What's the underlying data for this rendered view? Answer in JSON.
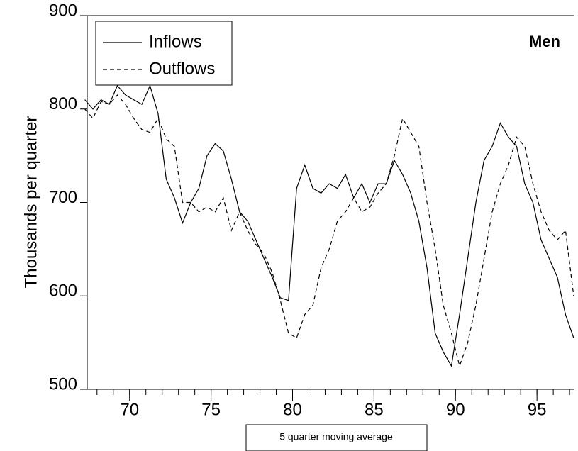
{
  "chart_data": {
    "type": "line",
    "panel_label": "Men",
    "y_label": "Thousands per quarter",
    "note": "5 quarter moving average",
    "x": [
      67.25,
      67.75,
      68.25,
      68.75,
      69.25,
      69.75,
      70.25,
      70.75,
      71.25,
      71.75,
      72.25,
      72.75,
      73.25,
      73.75,
      74.25,
      74.75,
      75.25,
      75.75,
      76.25,
      76.75,
      77.25,
      77.75,
      78.25,
      78.75,
      79.25,
      79.75,
      80.25,
      80.75,
      81.25,
      81.75,
      82.25,
      82.75,
      83.25,
      83.75,
      84.25,
      84.75,
      85.25,
      85.75,
      86.25,
      86.75,
      87.25,
      87.75,
      88.25,
      88.75,
      89.25,
      89.75,
      90.25,
      90.75,
      91.25,
      91.75,
      92.25,
      92.75,
      93.25,
      93.75,
      94.25,
      94.75,
      95.25,
      95.75,
      96.25,
      96.75,
      97.25
    ],
    "series": [
      {
        "name": "Inflows",
        "color": "#000000",
        "style": "solid",
        "values": [
          810,
          800,
          810,
          805,
          825,
          815,
          810,
          805,
          825,
          795,
          725,
          705,
          678,
          700,
          715,
          750,
          763,
          755,
          725,
          690,
          680,
          660,
          640,
          620,
          598,
          595,
          715,
          740,
          715,
          710,
          720,
          715,
          730,
          705,
          720,
          700,
          720,
          720,
          745,
          730,
          710,
          680,
          630,
          560,
          540,
          525,
          580,
          640,
          700,
          745,
          760,
          785,
          770,
          760,
          720,
          700,
          660,
          640,
          620,
          580,
          555
        ]
      },
      {
        "name": "Outflows",
        "color": "#000000",
        "style": "dashed",
        "values": [
          800,
          790,
          808,
          805,
          815,
          805,
          790,
          778,
          775,
          790,
          768,
          760,
          700,
          700,
          690,
          695,
          690,
          705,
          670,
          690,
          670,
          655,
          645,
          625,
          595,
          560,
          555,
          580,
          590,
          630,
          650,
          680,
          690,
          705,
          690,
          695,
          710,
          720,
          750,
          790,
          775,
          760,
          700,
          650,
          590,
          560,
          525,
          550,
          590,
          640,
          690,
          720,
          740,
          770,
          760,
          720,
          690,
          670,
          660,
          670,
          600
        ]
      }
    ],
    "xlim": [
      67.4,
      97.3
    ],
    "xticks": [
      70,
      75,
      80,
      85,
      90,
      95
    ],
    "ylim": [
      500,
      900
    ],
    "yticks": [
      500,
      600,
      700,
      800,
      900
    ]
  }
}
